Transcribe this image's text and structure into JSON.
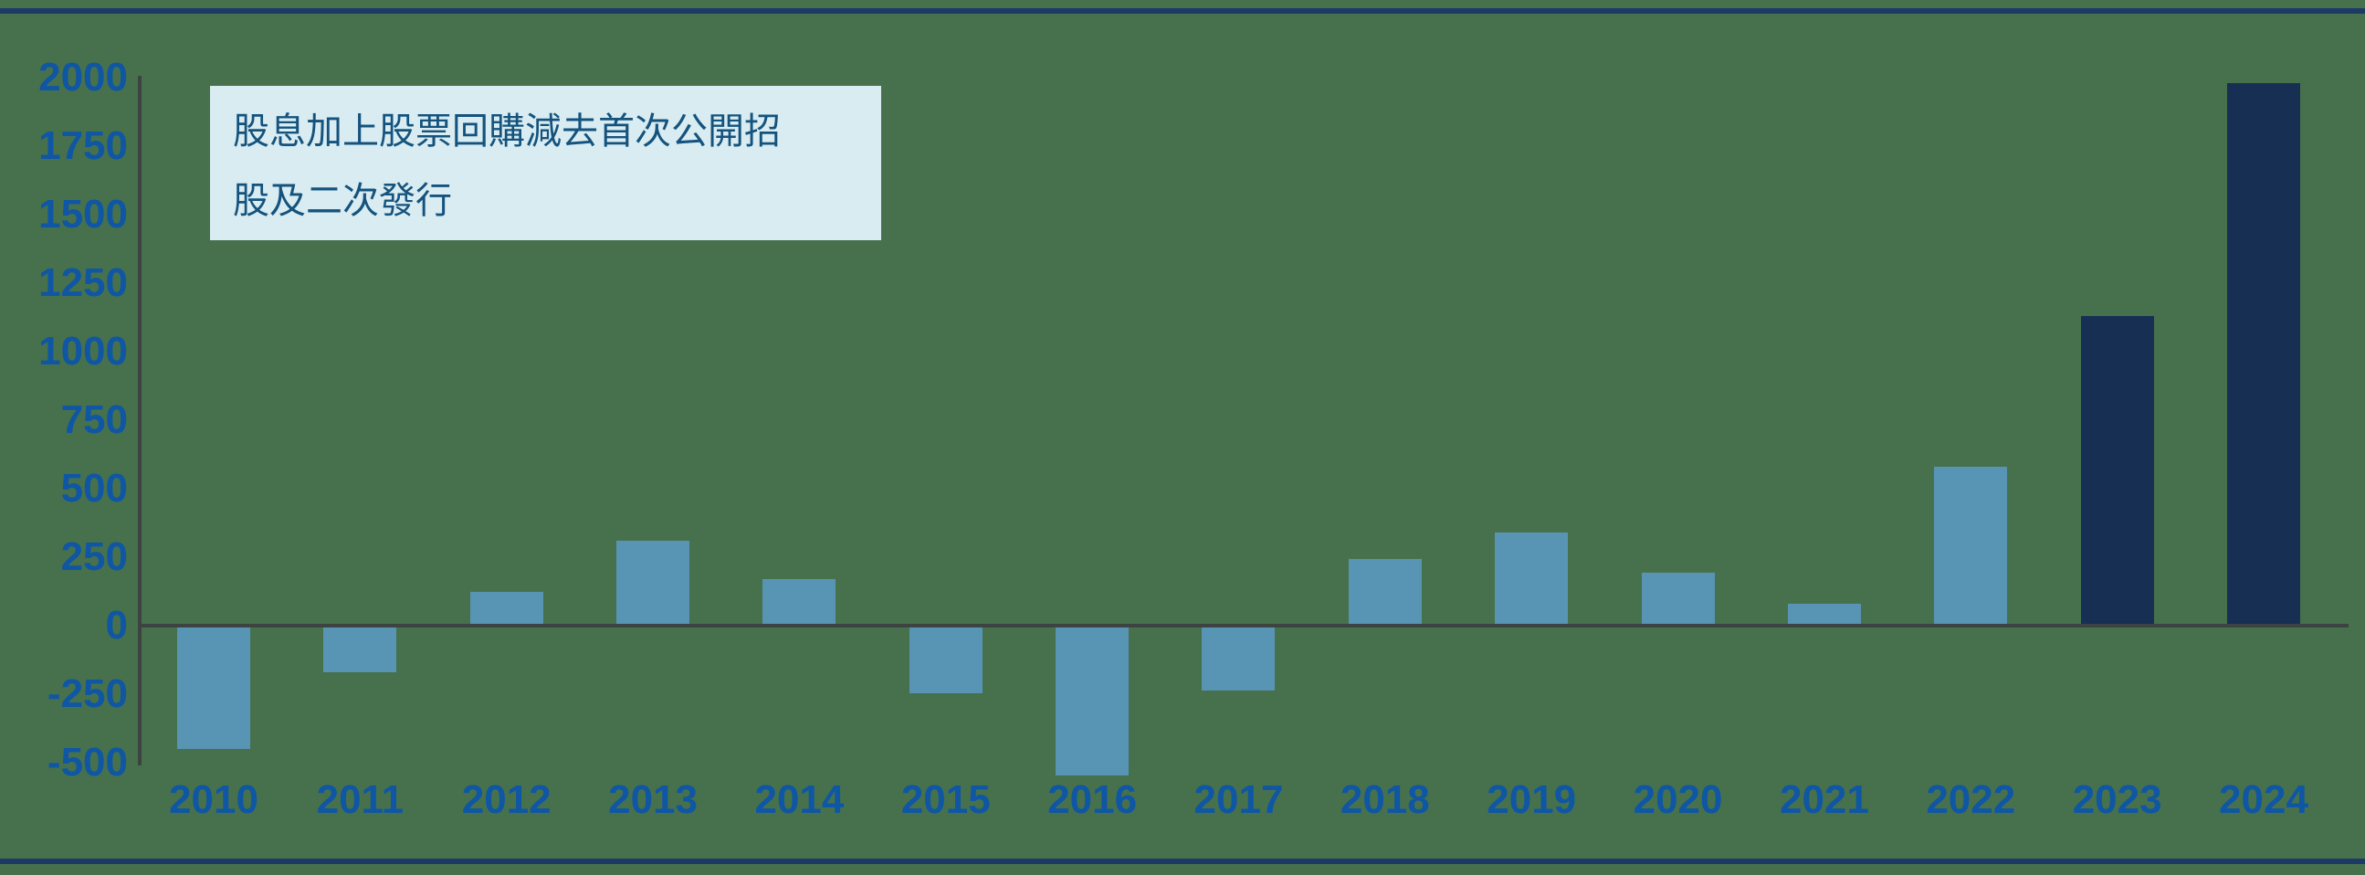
{
  "page": {
    "background_color": "#47714D",
    "frame_color": "#1C3A66"
  },
  "annotation": {
    "line1": "股息加上股票回購減去首次公開招",
    "line2": "股及二次發行",
    "background_color": "#D9ECF1",
    "text_color": "#14537E"
  },
  "chart_data": {
    "type": "bar",
    "title": "",
    "categories": [
      "2010",
      "2011",
      "2012",
      "2013",
      "2014",
      "2015",
      "2016",
      "2017",
      "2018",
      "2019",
      "2020",
      "2021",
      "2022",
      "2023",
      "2024"
    ],
    "values": [
      -450,
      -170,
      125,
      310,
      170,
      -245,
      -545,
      -235,
      245,
      340,
      195,
      80,
      580,
      1130,
      1980
    ],
    "ylim": [
      -500,
      2000
    ],
    "yticks": [
      2000,
      1750,
      1500,
      1250,
      1000,
      750,
      500,
      250,
      0,
      -250,
      -500
    ],
    "grid": false,
    "legend": null,
    "bar_color": "#5894B4",
    "highlight_bar_color": "#172F52",
    "highlight_categories": [
      "2023",
      "2024"
    ],
    "axis_line_color": "#3D4340",
    "tick_label_color": "#0F56A4"
  }
}
